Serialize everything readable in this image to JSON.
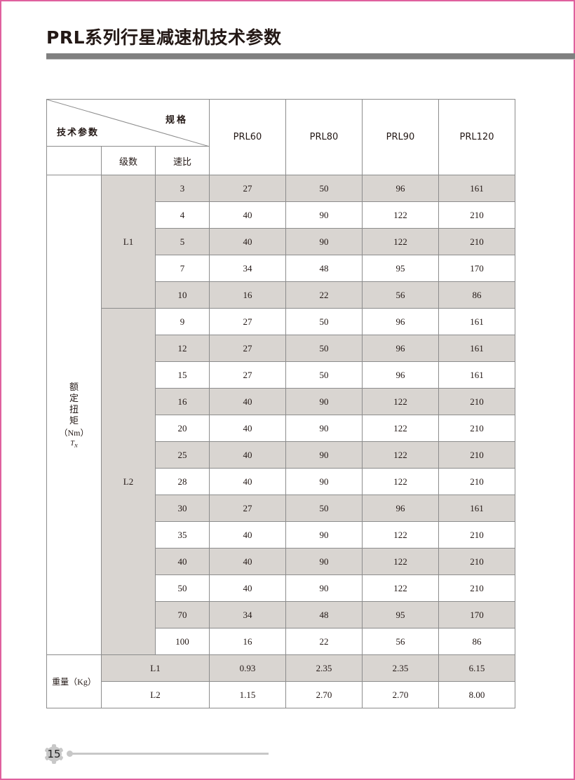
{
  "page": {
    "title": "PRL系列行星减速机技术参数",
    "page_number": "15"
  },
  "table": {
    "corner_left": "技术参数",
    "corner_right": "规格",
    "col_level": "级数",
    "col_ratio": "速比",
    "models": [
      "PRL60",
      "PRL80",
      "PRL90",
      "PRL120"
    ],
    "torque_label": "额定扭矩",
    "torque_unit": "（Nm）",
    "torque_symbol": "T",
    "torque_symbol_sub": "N",
    "groups": [
      {
        "level": "L1",
        "rows": [
          {
            "ratio": "3",
            "values": [
              "27",
              "50",
              "96",
              "161"
            ]
          },
          {
            "ratio": "4",
            "values": [
              "40",
              "90",
              "122",
              "210"
            ]
          },
          {
            "ratio": "5",
            "values": [
              "40",
              "90",
              "122",
              "210"
            ]
          },
          {
            "ratio": "7",
            "values": [
              "34",
              "48",
              "95",
              "170"
            ]
          },
          {
            "ratio": "10",
            "values": [
              "16",
              "22",
              "56",
              "86"
            ]
          }
        ]
      },
      {
        "level": "L2",
        "rows": [
          {
            "ratio": "9",
            "values": [
              "27",
              "50",
              "96",
              "161"
            ]
          },
          {
            "ratio": "12",
            "values": [
              "27",
              "50",
              "96",
              "161"
            ]
          },
          {
            "ratio": "15",
            "values": [
              "27",
              "50",
              "96",
              "161"
            ]
          },
          {
            "ratio": "16",
            "values": [
              "40",
              "90",
              "122",
              "210"
            ]
          },
          {
            "ratio": "20",
            "values": [
              "40",
              "90",
              "122",
              "210"
            ]
          },
          {
            "ratio": "25",
            "values": [
              "40",
              "90",
              "122",
              "210"
            ]
          },
          {
            "ratio": "28",
            "values": [
              "40",
              "90",
              "122",
              "210"
            ]
          },
          {
            "ratio": "30",
            "values": [
              "27",
              "50",
              "96",
              "161"
            ]
          },
          {
            "ratio": "35",
            "values": [
              "40",
              "90",
              "122",
              "210"
            ]
          },
          {
            "ratio": "40",
            "values": [
              "40",
              "90",
              "122",
              "210"
            ]
          },
          {
            "ratio": "50",
            "values": [
              "40",
              "90",
              "122",
              "210"
            ]
          },
          {
            "ratio": "70",
            "values": [
              "34",
              "48",
              "95",
              "170"
            ]
          },
          {
            "ratio": "100",
            "values": [
              "16",
              "22",
              "56",
              "86"
            ]
          }
        ]
      }
    ],
    "weight_label": "重量（Kg）",
    "weight_rows": [
      {
        "level": "L1",
        "values": [
          "0.93",
          "2.35",
          "2.35",
          "6.15"
        ]
      },
      {
        "level": "L2",
        "values": [
          "1.15",
          "2.70",
          "2.70",
          "8.00"
        ]
      }
    ]
  },
  "colors": {
    "shade": "#d9d5d1",
    "border": "#e0609e",
    "title_bar": "#808080"
  }
}
